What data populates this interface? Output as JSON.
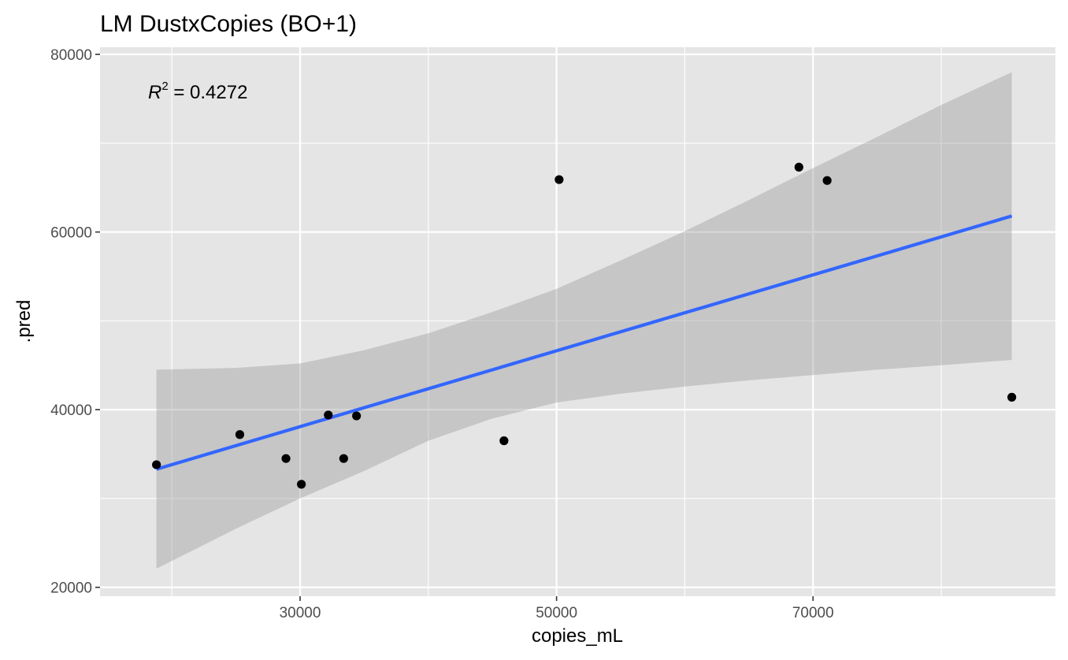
{
  "chart_data": {
    "type": "scatter",
    "title": "LM DustxCopies (BO+1)",
    "xlabel": "copies_mL",
    "ylabel": ".pred",
    "xlim": [
      14400,
      88900
    ],
    "ylim": [
      19000,
      80800
    ],
    "x_ticks": [
      30000,
      50000,
      70000
    ],
    "x_tick_labels": [
      "30000",
      "50000",
      "70000"
    ],
    "x_minor_ticks": [
      20000,
      40000,
      60000,
      80000
    ],
    "y_ticks": [
      20000,
      40000,
      60000,
      80000
    ],
    "y_tick_labels": [
      "20000",
      "40000",
      "60000",
      "80000"
    ],
    "y_minor_ticks": [
      30000,
      50000,
      70000
    ],
    "grid": true,
    "annotation": {
      "symbol": "R",
      "superscript": "2",
      "text": " = 0.4272"
    },
    "points": [
      {
        "x": 18800,
        "y": 33800
      },
      {
        "x": 25300,
        "y": 37200
      },
      {
        "x": 28900,
        "y": 34500
      },
      {
        "x": 30100,
        "y": 31600
      },
      {
        "x": 32200,
        "y": 39400
      },
      {
        "x": 33400,
        "y": 34500
      },
      {
        "x": 34400,
        "y": 39300
      },
      {
        "x": 45900,
        "y": 36500
      },
      {
        "x": 50200,
        "y": 65900
      },
      {
        "x": 68900,
        "y": 67300
      },
      {
        "x": 71100,
        "y": 65800
      },
      {
        "x": 85500,
        "y": 41400
      }
    ],
    "fit": {
      "name": "lm",
      "color": "#3366FF",
      "x": [
        18800,
        85500
      ],
      "y": [
        33300,
        61800
      ]
    },
    "confidence_band": {
      "color": "#999999",
      "x": [
        18800,
        25000,
        30000,
        35000,
        40000,
        45000,
        50000,
        55000,
        60000,
        65000,
        70000,
        75000,
        80000,
        85500
      ],
      "upper": [
        44500,
        44700,
        45200,
        46700,
        48600,
        51000,
        53600,
        56800,
        60100,
        63600,
        67200,
        70700,
        74300,
        78000
      ],
      "lower": [
        22100,
        26600,
        30000,
        33100,
        36500,
        39000,
        40800,
        41800,
        42600,
        43300,
        43900,
        44500,
        45000,
        45600
      ]
    },
    "colors": {
      "panel": "#E5E5E5",
      "grid": "#FFFFFF",
      "point": "#000000",
      "tick": "#4D4D4D"
    }
  }
}
